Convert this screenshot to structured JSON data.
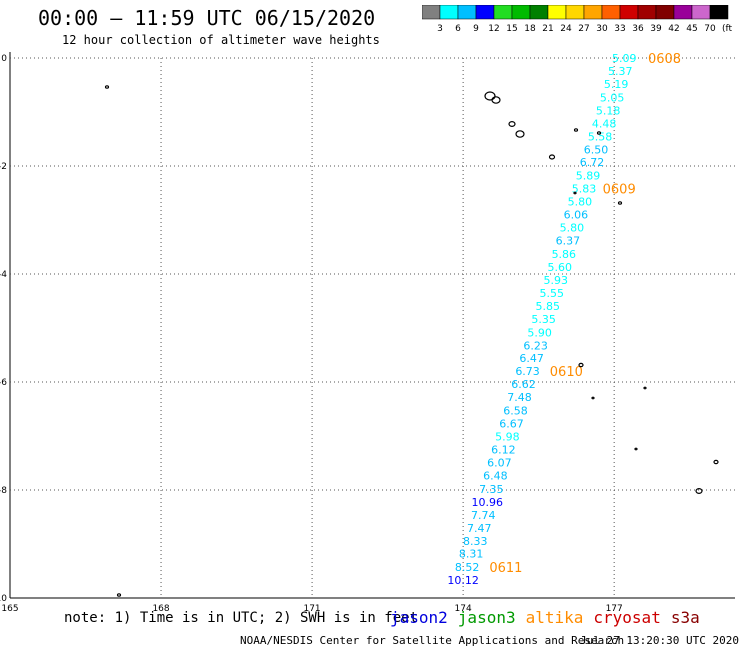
{
  "title": "00:00 – 11:59 UTC 06/15/2020",
  "subtitle": "12 hour collection of altimeter wave heights",
  "colorscale": {
    "unit": "(ft)",
    "colors": [
      "#808080",
      "#00ffff",
      "#00bfff",
      "#0000ff",
      "#22dd22",
      "#00bb00",
      "#008000",
      "#ffff00",
      "#ffd700",
      "#ffa500",
      "#ff6000",
      "#d00000",
      "#a00000",
      "#800000",
      "#990099",
      "#cc66cc",
      "#000000"
    ],
    "labels": [
      "3",
      "6",
      "9",
      "12",
      "15",
      "18",
      "21",
      "24",
      "27",
      "30",
      "33",
      "36",
      "39",
      "42",
      "45",
      "70"
    ]
  },
  "chart_data": {
    "type": "scatter",
    "title": "00:00 – 11:59 UTC 06/15/2020",
    "subtitle": "12 hour collection of altimeter wave heights",
    "xlabel": "",
    "ylabel": "",
    "xlim": [
      165,
      179.4
    ],
    "ylim": [
      -10,
      0
    ],
    "x_ticks": [
      "165",
      "168",
      "171",
      "174",
      "177"
    ],
    "y_ticks": [
      "0",
      "-2",
      "-4",
      "-6",
      "-8",
      "-10"
    ],
    "grid": true,
    "points": [
      {
        "x": 177.2,
        "y": 0.0,
        "v": "5.09",
        "c": "#00ffff"
      },
      {
        "x": 177.12,
        "y": -0.24,
        "v": "5.37",
        "c": "#00ffff"
      },
      {
        "x": 177.04,
        "y": -0.48,
        "v": "5.19",
        "c": "#00ffff"
      },
      {
        "x": 176.96,
        "y": -0.73,
        "v": "5.05",
        "c": "#00ffff"
      },
      {
        "x": 176.88,
        "y": -0.97,
        "v": "5.18",
        "c": "#00ffff"
      },
      {
        "x": 176.8,
        "y": -1.21,
        "v": "4.48",
        "c": "#00ffff"
      },
      {
        "x": 176.72,
        "y": -1.45,
        "v": "5.58",
        "c": "#00ffff"
      },
      {
        "x": 176.64,
        "y": -1.69,
        "v": "6.50",
        "c": "#00bfff"
      },
      {
        "x": 176.56,
        "y": -1.93,
        "v": "6.72",
        "c": "#00bfff"
      },
      {
        "x": 176.48,
        "y": -2.18,
        "v": "5.89",
        "c": "#00ffff"
      },
      {
        "x": 176.4,
        "y": -2.42,
        "v": "5.83",
        "c": "#00ffff"
      },
      {
        "x": 176.32,
        "y": -2.66,
        "v": "5.80",
        "c": "#00ffff"
      },
      {
        "x": 176.24,
        "y": -2.9,
        "v": "6.06",
        "c": "#00bfff"
      },
      {
        "x": 176.16,
        "y": -3.14,
        "v": "5.80",
        "c": "#00ffff"
      },
      {
        "x": 176.08,
        "y": -3.38,
        "v": "6.37",
        "c": "#00bfff"
      },
      {
        "x": 176.0,
        "y": -3.63,
        "v": "5.86",
        "c": "#00ffff"
      },
      {
        "x": 175.92,
        "y": -3.87,
        "v": "5.60",
        "c": "#00ffff"
      },
      {
        "x": 175.84,
        "y": -4.11,
        "v": "5.93",
        "c": "#00ffff"
      },
      {
        "x": 175.76,
        "y": -4.35,
        "v": "5.55",
        "c": "#00ffff"
      },
      {
        "x": 175.68,
        "y": -4.59,
        "v": "5.85",
        "c": "#00ffff"
      },
      {
        "x": 175.6,
        "y": -4.83,
        "v": "5.35",
        "c": "#00ffff"
      },
      {
        "x": 175.52,
        "y": -5.08,
        "v": "5.90",
        "c": "#00ffff"
      },
      {
        "x": 175.44,
        "y": -5.32,
        "v": "6.23",
        "c": "#00bfff"
      },
      {
        "x": 175.36,
        "y": -5.56,
        "v": "6.47",
        "c": "#00bfff"
      },
      {
        "x": 175.28,
        "y": -5.8,
        "v": "6.73",
        "c": "#00bfff"
      },
      {
        "x": 175.2,
        "y": -6.04,
        "v": "6.62",
        "c": "#00bfff"
      },
      {
        "x": 175.12,
        "y": -6.28,
        "v": "7.48",
        "c": "#00bfff"
      },
      {
        "x": 175.04,
        "y": -6.53,
        "v": "6.58",
        "c": "#00bfff"
      },
      {
        "x": 174.96,
        "y": -6.77,
        "v": "6.67",
        "c": "#00bfff"
      },
      {
        "x": 174.88,
        "y": -7.01,
        "v": "5.98",
        "c": "#00ffff"
      },
      {
        "x": 174.8,
        "y": -7.25,
        "v": "6.12",
        "c": "#00bfff"
      },
      {
        "x": 174.72,
        "y": -7.49,
        "v": "6.07",
        "c": "#00bfff"
      },
      {
        "x": 174.64,
        "y": -7.73,
        "v": "6.48",
        "c": "#00bfff"
      },
      {
        "x": 174.56,
        "y": -7.98,
        "v": "7.35",
        "c": "#00bfff"
      },
      {
        "x": 174.48,
        "y": -8.22,
        "v": "10.96",
        "c": "#0000ff"
      },
      {
        "x": 174.4,
        "y": -8.46,
        "v": "7.74",
        "c": "#00bfff"
      },
      {
        "x": 174.32,
        "y": -8.7,
        "v": "7.47",
        "c": "#00bfff"
      },
      {
        "x": 174.24,
        "y": -8.94,
        "v": "8.33",
        "c": "#00bfff"
      },
      {
        "x": 174.16,
        "y": -9.18,
        "v": "8.31",
        "c": "#00bfff"
      },
      {
        "x": 174.08,
        "y": -9.43,
        "v": "8.52",
        "c": "#00bfff"
      },
      {
        "x": 174.0,
        "y": -9.67,
        "v": "10.12",
        "c": "#0000ff"
      }
    ],
    "time_labels": [
      {
        "x": 178.0,
        "y": 0.0,
        "text": "0608",
        "color": "#ff8c00"
      },
      {
        "x": 177.1,
        "y": -2.42,
        "text": "0609",
        "color": "#ff8c00"
      },
      {
        "x": 176.05,
        "y": -5.8,
        "text": "0610",
        "color": "#ff8c00"
      },
      {
        "x": 174.85,
        "y": -9.43,
        "text": "0611",
        "color": "#ff8c00"
      }
    ]
  },
  "note": "note: 1) Time is in UTC; 2) SWH is in feet",
  "legend": [
    {
      "name": "jason2",
      "color": "#0000dd"
    },
    {
      "name": "jason3",
      "color": "#009900"
    },
    {
      "name": "altika",
      "color": "#ff8c00"
    },
    {
      "name": "cryosat",
      "color": "#cc0000"
    },
    {
      "name": "s3a",
      "color": "#880000"
    }
  ],
  "credit": "NOAA/NESDIS Center for Satellite Applications and Research",
  "stamp": "Jul 27 13:20:30 UTC 2020"
}
